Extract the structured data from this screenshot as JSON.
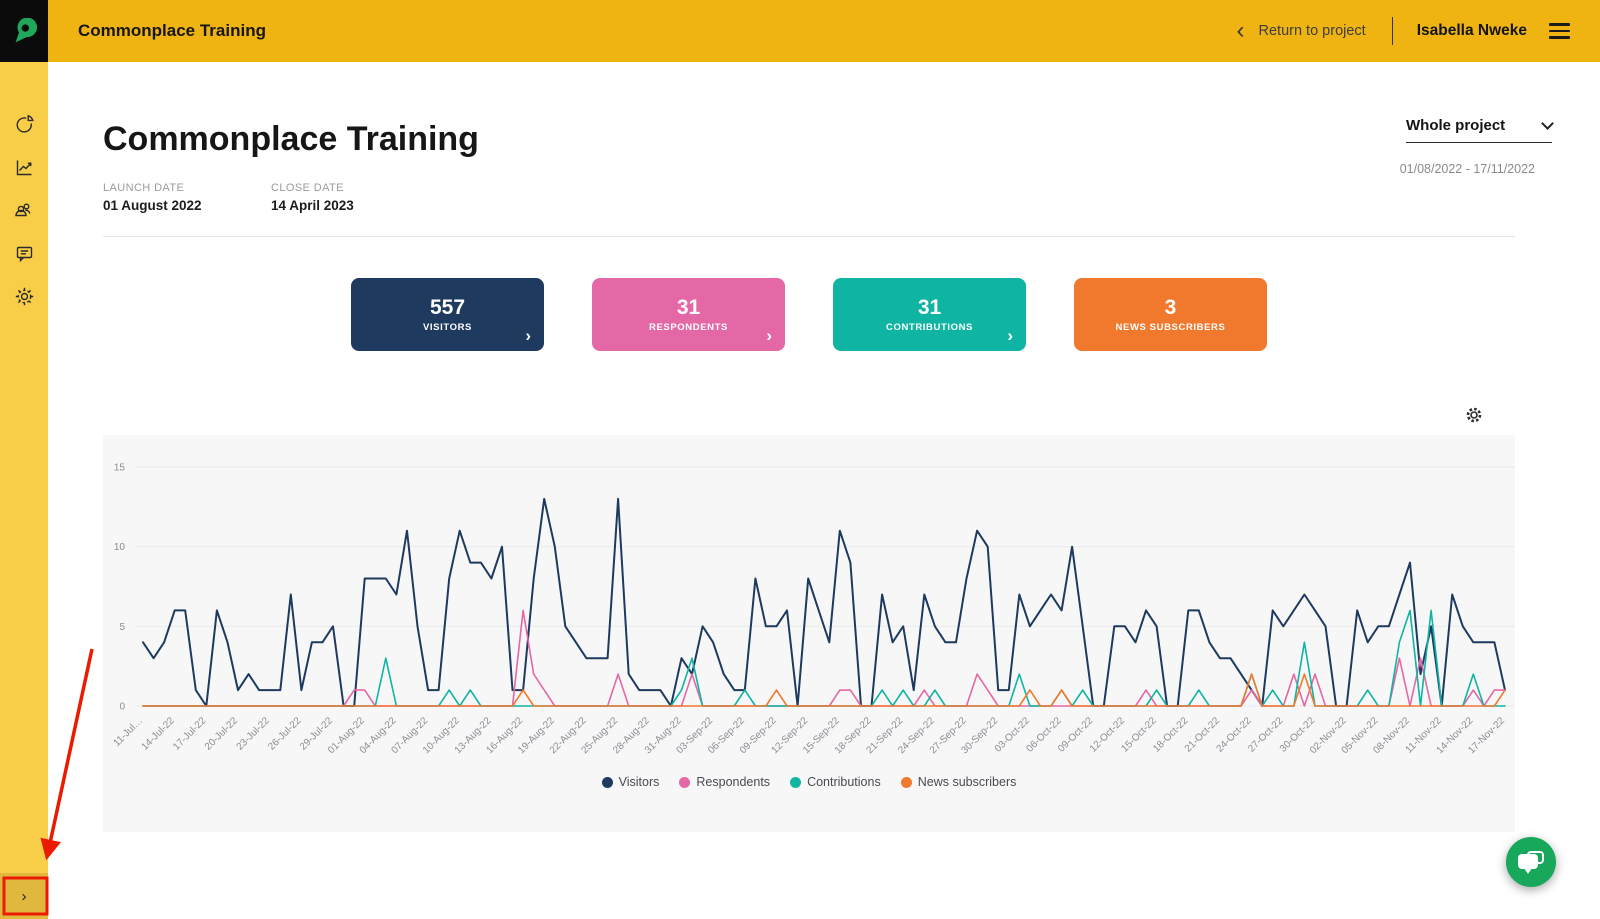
{
  "header": {
    "app_title": "Commonplace Training",
    "return_label": "Return to project",
    "user_name": "Isabella Nweke"
  },
  "icons": {
    "chevron_right": "›",
    "back_chevron": "‹"
  },
  "sidebar": {
    "icons": [
      "pie-chart-icon",
      "line-chart-icon",
      "people-icon",
      "comments-icon",
      "settings-icon"
    ],
    "expand_label": "›"
  },
  "page": {
    "title": "Commonplace Training",
    "launch_date_label": "LAUNCH DATE",
    "launch_date": "01 August 2022",
    "close_date_label": "CLOSE DATE",
    "close_date": "14 April 2023",
    "range_selector_value": "Whole project",
    "date_range": "01/08/2022 - 17/11/2022"
  },
  "cards": [
    {
      "value": "557",
      "label": "VISITORS",
      "color": "#1E3A5F",
      "has_chevron": true
    },
    {
      "value": "31",
      "label": "RESPONDENTS",
      "color": "#E568A6",
      "has_chevron": true
    },
    {
      "value": "31",
      "label": "CONTRIBUTIONS",
      "color": "#0FB4A3",
      "has_chevron": true
    },
    {
      "value": "3",
      "label": "NEWS SUBSCRIBERS",
      "color": "#F1792E",
      "has_chevron": false
    }
  ],
  "annotation": {
    "color": "#EB1A00",
    "type": "arrow-and-box-highlight-on-sidebar-expand-button"
  },
  "chart_data": {
    "type": "line",
    "title": "",
    "xlabel": "",
    "ylabel": "",
    "ylim": [
      0,
      15
    ],
    "y_ticks": [
      0,
      5,
      10,
      15
    ],
    "grid": true,
    "legend_position": "bottom",
    "x_start": "11-Jul-22",
    "x_end": "17-Nov-22",
    "x_tick_interval_days": 3,
    "x_tick_labels": [
      "11-Jul…",
      "14-Jul-22",
      "17-Jul-22",
      "20-Jul-22",
      "23-Jul-22",
      "26-Jul-22",
      "29-Jul-22",
      "01-Aug-22",
      "04-Aug-22",
      "07-Aug-22",
      "10-Aug-22",
      "13-Aug-22",
      "16-Aug-22",
      "19-Aug-22",
      "22-Aug-22",
      "25-Aug-22",
      "28-Aug-22",
      "31-Aug-22",
      "03-Sep-22",
      "06-Sep-22",
      "09-Sep-22",
      "12-Sep-22",
      "15-Sep-22",
      "18-Sep-22",
      "21-Sep-22",
      "24-Sep-22",
      "27-Sep-22",
      "30-Sep-22",
      "03-Oct-22",
      "06-Oct-22",
      "09-Oct-22",
      "12-Oct-22",
      "15-Oct-22",
      "18-Oct-22",
      "21-Oct-22",
      "24-Oct-22",
      "27-Oct-22",
      "30-Oct-22",
      "02-Nov-22",
      "05-Nov-22",
      "08-Nov-22",
      "11-Nov-22",
      "14-Nov-22",
      "17-Nov-22"
    ],
    "series": [
      {
        "name": "Visitors",
        "color": "#1E3A5F",
        "stroke_width": 2,
        "values": [
          4,
          3,
          4,
          6,
          6,
          1,
          0,
          6,
          4,
          1,
          2,
          1,
          1,
          1,
          7,
          1,
          4,
          4,
          5,
          0,
          0,
          8,
          8,
          8,
          7,
          11,
          5,
          1,
          1,
          8,
          11,
          9,
          9,
          8,
          10,
          1,
          1,
          8,
          13,
          10,
          5,
          4,
          3,
          3,
          3,
          13,
          2,
          1,
          1,
          1,
          0,
          3,
          2,
          5,
          4,
          2,
          1,
          1,
          8,
          5,
          5,
          6,
          0,
          8,
          6,
          4,
          11,
          9,
          0,
          0,
          7,
          4,
          5,
          1,
          7,
          5,
          4,
          4,
          8,
          11,
          10,
          1,
          1,
          7,
          5,
          6,
          7,
          6,
          10,
          5,
          0,
          0,
          5,
          5,
          4,
          6,
          5,
          0,
          0,
          6,
          6,
          4,
          3,
          3,
          2,
          1,
          0,
          6,
          5,
          6,
          7,
          6,
          5,
          0,
          0,
          6,
          4,
          5,
          5,
          7,
          9,
          2,
          5,
          0,
          7,
          5,
          4,
          4,
          4,
          1
        ]
      },
      {
        "name": "Respondents",
        "color": "#E568A6",
        "stroke_width": 1.6,
        "values": [
          0,
          0,
          0,
          0,
          0,
          0,
          0,
          0,
          0,
          0,
          0,
          0,
          0,
          0,
          0,
          0,
          0,
          0,
          0,
          0,
          1,
          1,
          0,
          0,
          0,
          0,
          0,
          0,
          0,
          0,
          0,
          0,
          0,
          0,
          0,
          0,
          6,
          2,
          1,
          0,
          0,
          0,
          0,
          0,
          0,
          2,
          0,
          0,
          0,
          0,
          0,
          0,
          2,
          0,
          0,
          0,
          0,
          0,
          0,
          0,
          0,
          0,
          0,
          0,
          0,
          0,
          1,
          1,
          0,
          0,
          0,
          0,
          0,
          0,
          1,
          0,
          0,
          0,
          0,
          2,
          1,
          0,
          0,
          0,
          0,
          0,
          0,
          0,
          0,
          0,
          0,
          0,
          0,
          0,
          0,
          1,
          0,
          0,
          0,
          0,
          0,
          0,
          0,
          0,
          0,
          1,
          0,
          0,
          0,
          2,
          0,
          2,
          0,
          0,
          0,
          0,
          0,
          0,
          0,
          3,
          0,
          3,
          0,
          0,
          0,
          0,
          1,
          0,
          1,
          1
        ]
      },
      {
        "name": "Contributions",
        "color": "#0FB4A3",
        "stroke_width": 1.6,
        "values": [
          0,
          0,
          0,
          0,
          0,
          0,
          0,
          0,
          0,
          0,
          0,
          0,
          0,
          0,
          0,
          0,
          0,
          0,
          0,
          0,
          0,
          0,
          0,
          3,
          0,
          0,
          0,
          0,
          0,
          1,
          0,
          1,
          0,
          0,
          0,
          0,
          0,
          0,
          0,
          0,
          0,
          0,
          0,
          0,
          0,
          0,
          0,
          0,
          0,
          0,
          0,
          1,
          3,
          0,
          0,
          0,
          0,
          1,
          0,
          0,
          0,
          0,
          0,
          0,
          0,
          0,
          0,
          0,
          0,
          0,
          1,
          0,
          1,
          0,
          0,
          1,
          0,
          0,
          0,
          0,
          0,
          0,
          0,
          2,
          0,
          0,
          0,
          1,
          0,
          1,
          0,
          0,
          0,
          0,
          0,
          0,
          1,
          0,
          0,
          0,
          1,
          0,
          0,
          0,
          0,
          2,
          0,
          1,
          0,
          0,
          4,
          0,
          0,
          0,
          0,
          0,
          1,
          0,
          0,
          4,
          6,
          0,
          6,
          0,
          0,
          0,
          2,
          0,
          0,
          0
        ]
      },
      {
        "name": "News subscribers",
        "color": "#F1792E",
        "stroke_width": 1.6,
        "values": [
          0,
          0,
          0,
          0,
          0,
          0,
          0,
          0,
          0,
          0,
          0,
          0,
          0,
          0,
          0,
          0,
          0,
          0,
          0,
          0,
          0,
          0,
          0,
          0,
          0,
          0,
          0,
          0,
          0,
          0,
          0,
          0,
          0,
          0,
          0,
          0,
          1,
          0,
          0,
          0,
          0,
          0,
          0,
          0,
          0,
          0,
          0,
          0,
          0,
          0,
          0,
          0,
          0,
          0,
          0,
          0,
          0,
          0,
          0,
          0,
          1,
          0,
          0,
          0,
          0,
          0,
          0,
          0,
          0,
          0,
          0,
          0,
          0,
          0,
          0,
          0,
          0,
          0,
          0,
          0,
          0,
          0,
          0,
          0,
          1,
          0,
          0,
          1,
          0,
          0,
          0,
          0,
          0,
          0,
          0,
          0,
          0,
          0,
          0,
          0,
          0,
          0,
          0,
          0,
          0,
          2,
          0,
          0,
          0,
          0,
          2,
          0,
          0,
          0,
          0,
          0,
          0,
          0,
          0,
          0,
          0,
          0,
          0,
          0,
          0,
          0,
          0,
          0,
          0,
          1
        ]
      }
    ]
  }
}
